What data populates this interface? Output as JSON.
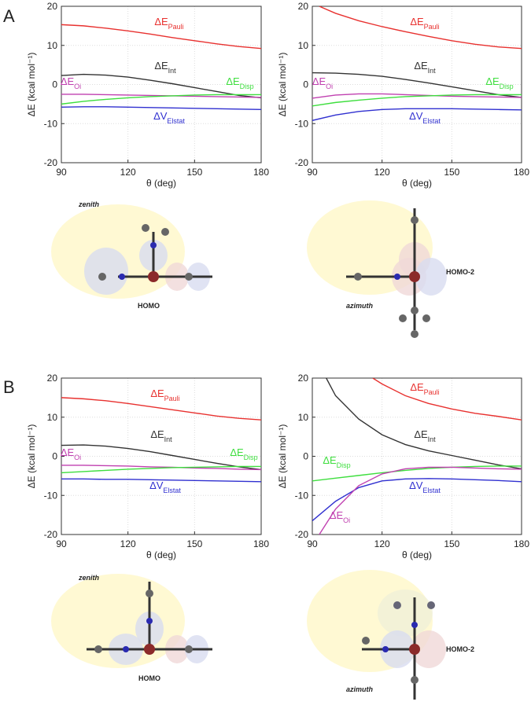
{
  "panel_labels": [
    "A",
    "B"
  ],
  "molecule_labels": [
    [
      "zenith",
      "HOMO"
    ],
    [
      "azimuth",
      "HOMO-2"
    ],
    [
      "zenith",
      "HOMO"
    ],
    [
      "azimuth",
      "HOMO-2"
    ]
  ],
  "chart_data": [
    {
      "type": "line",
      "xlabel": "θ (deg)",
      "ylabel": "ΔE (kcal mol⁻¹)",
      "x": [
        90,
        100,
        110,
        120,
        130,
        140,
        150,
        160,
        170,
        180
      ],
      "xlim": [
        90,
        180
      ],
      "xticks": [
        90,
        120,
        150,
        180
      ],
      "ylim": [
        -20,
        20
      ],
      "yticks": [
        -20,
        -10,
        0,
        10,
        20
      ],
      "grid": true,
      "series": [
        {
          "name": "ΔE",
          "subscript": "Pauli",
          "color": "#e8312f",
          "values": [
            15.3,
            15,
            14.4,
            13.7,
            12.9,
            12,
            11.2,
            10.4,
            9.7,
            9.2
          ]
        },
        {
          "name": "ΔE",
          "subscript": "Int",
          "color": "#333333",
          "values": [
            2.3,
            2.6,
            2.4,
            1.9,
            1.1,
            0.2,
            -0.8,
            -1.8,
            -2.8,
            -3.4
          ]
        },
        {
          "name": "ΔE",
          "subscript": "Oi",
          "color": "#c040b0",
          "values": [
            -2.5,
            -2.5,
            -2.6,
            -2.7,
            -2.8,
            -2.9,
            -3,
            -3.1,
            -3.2,
            -3.3
          ]
        },
        {
          "name": "ΔE",
          "subscript": "Disp",
          "color": "#3ede3e",
          "values": [
            -5,
            -4.3,
            -3.8,
            -3.4,
            -3.1,
            -2.9,
            -2.7,
            -2.6,
            -2.6,
            -2.6
          ]
        },
        {
          "name": "ΔV",
          "subscript": "Elstat",
          "color": "#3030d0",
          "values": [
            -5.8,
            -5.7,
            -5.7,
            -5.8,
            -5.9,
            -6,
            -6.1,
            -6.2,
            -6.3,
            -6.4
          ]
        }
      ]
    },
    {
      "type": "line",
      "xlabel": "θ (deg)",
      "ylabel": "ΔE (kcal mol⁻¹)",
      "x": [
        90,
        100,
        110,
        120,
        130,
        140,
        150,
        160,
        170,
        180
      ],
      "xlim": [
        90,
        180
      ],
      "xticks": [
        90,
        120,
        150,
        180
      ],
      "ylim": [
        -20,
        20
      ],
      "yticks": [
        -20,
        -10,
        0,
        10,
        20
      ],
      "grid": true,
      "series": [
        {
          "name": "ΔE",
          "subscript": "Pauli",
          "color": "#e8312f",
          "x": [
            93,
            100,
            110,
            120,
            130,
            140,
            150,
            160,
            170,
            180
          ],
          "values": [
            20,
            18.2,
            16.3,
            14.8,
            13.5,
            12.3,
            11.2,
            10.3,
            9.6,
            9.2
          ]
        },
        {
          "name": "ΔE",
          "subscript": "Int",
          "color": "#333333",
          "values": [
            3,
            2.9,
            2.6,
            2.1,
            1.3,
            0.4,
            -0.6,
            -1.6,
            -2.6,
            -3.3
          ]
        },
        {
          "name": "ΔE",
          "subscript": "Oi",
          "color": "#c040b0",
          "values": [
            -3.5,
            -2.7,
            -2.4,
            -2.4,
            -2.6,
            -2.8,
            -3,
            -3.1,
            -3.2,
            -3.3
          ]
        },
        {
          "name": "ΔE",
          "subscript": "Disp",
          "color": "#3ede3e",
          "values": [
            -5.5,
            -4.6,
            -4,
            -3.5,
            -3.1,
            -2.9,
            -2.7,
            -2.6,
            -2.6,
            -2.6
          ]
        },
        {
          "name": "ΔV",
          "subscript": "Elstat",
          "color": "#3030d0",
          "values": [
            -9.2,
            -7.8,
            -6.9,
            -6.4,
            -6.2,
            -6.2,
            -6.2,
            -6.3,
            -6.4,
            -6.5
          ]
        }
      ]
    },
    {
      "type": "line",
      "xlabel": "θ (deg)",
      "ylabel": "ΔE (kcal mol⁻¹)",
      "x": [
        90,
        100,
        110,
        120,
        130,
        140,
        150,
        160,
        170,
        180
      ],
      "xlim": [
        90,
        180
      ],
      "xticks": [
        90,
        120,
        150,
        180
      ],
      "ylim": [
        -20,
        20
      ],
      "yticks": [
        -20,
        -10,
        0,
        10,
        20
      ],
      "grid": true,
      "series": [
        {
          "name": "ΔE",
          "subscript": "Pauli",
          "color": "#e8312f",
          "values": [
            15,
            14.7,
            14.2,
            13.5,
            12.7,
            11.9,
            11.1,
            10.3,
            9.7,
            9.3
          ]
        },
        {
          "name": "ΔE",
          "subscript": "Int",
          "color": "#333333",
          "values": [
            2.8,
            2.9,
            2.6,
            2,
            1.2,
            0.2,
            -0.8,
            -1.8,
            -2.7,
            -3.4
          ]
        },
        {
          "name": "ΔE",
          "subscript": "Oi",
          "color": "#c040b0",
          "values": [
            -2.3,
            -2.3,
            -2.4,
            -2.5,
            -2.7,
            -2.8,
            -3,
            -3.1,
            -3.3,
            -3.4
          ]
        },
        {
          "name": "ΔE",
          "subscript": "Disp",
          "color": "#3ede3e",
          "values": [
            -4.2,
            -3.9,
            -3.6,
            -3.3,
            -3.1,
            -2.9,
            -2.8,
            -2.7,
            -2.6,
            -2.6
          ]
        },
        {
          "name": "ΔV",
          "subscript": "Elstat",
          "color": "#3030d0",
          "values": [
            -5.8,
            -5.8,
            -5.9,
            -5.9,
            -6,
            -6.1,
            -6.2,
            -6.3,
            -6.4,
            -6.5
          ]
        }
      ]
    },
    {
      "type": "line",
      "xlabel": "θ (deg)",
      "ylabel": "ΔE (kcal mol⁻¹)",
      "x": [
        90,
        100,
        110,
        120,
        130,
        140,
        150,
        160,
        170,
        180
      ],
      "xlim": [
        90,
        180
      ],
      "xticks": [
        90,
        120,
        150,
        180
      ],
      "ylim": [
        -20,
        20
      ],
      "yticks": [
        -20,
        -10,
        0,
        10,
        20
      ],
      "grid": true,
      "series": [
        {
          "name": "ΔE",
          "subscript": "Pauli",
          "color": "#e8312f",
          "x": [
            116,
            120,
            130,
            140,
            150,
            160,
            170,
            180
          ],
          "values": [
            20,
            18.5,
            15.5,
            13.5,
            12.1,
            11,
            10.2,
            9.3
          ]
        },
        {
          "name": "ΔE",
          "subscript": "Int",
          "color": "#333333",
          "x": [
            96,
            100,
            110,
            120,
            130,
            140,
            150,
            160,
            170,
            180
          ],
          "values": [
            20,
            15.5,
            9.5,
            5.5,
            3,
            1.4,
            0.2,
            -1,
            -2.2,
            -3.2
          ]
        },
        {
          "name": "ΔE",
          "subscript": "Disp",
          "color": "#3ede3e",
          "values": [
            -6.3,
            -5.6,
            -4.9,
            -4.2,
            -3.6,
            -3.1,
            -2.8,
            -2.6,
            -2.5,
            -2.5
          ]
        },
        {
          "name": "ΔV",
          "subscript": "Elstat",
          "color": "#3030d0",
          "values": [
            -16.5,
            -11.5,
            -8,
            -6.3,
            -5.8,
            -5.7,
            -5.8,
            -6,
            -6.2,
            -6.5
          ]
        },
        {
          "name": "ΔE",
          "subscript": "Oi",
          "color": "#c040b0",
          "x": [
            93,
            100,
            110,
            120,
            130,
            140,
            150,
            160,
            170,
            180
          ],
          "values": [
            -20,
            -13.5,
            -7.5,
            -4.5,
            -3.2,
            -2.8,
            -2.8,
            -3,
            -3.2,
            -3.3
          ]
        }
      ]
    }
  ]
}
